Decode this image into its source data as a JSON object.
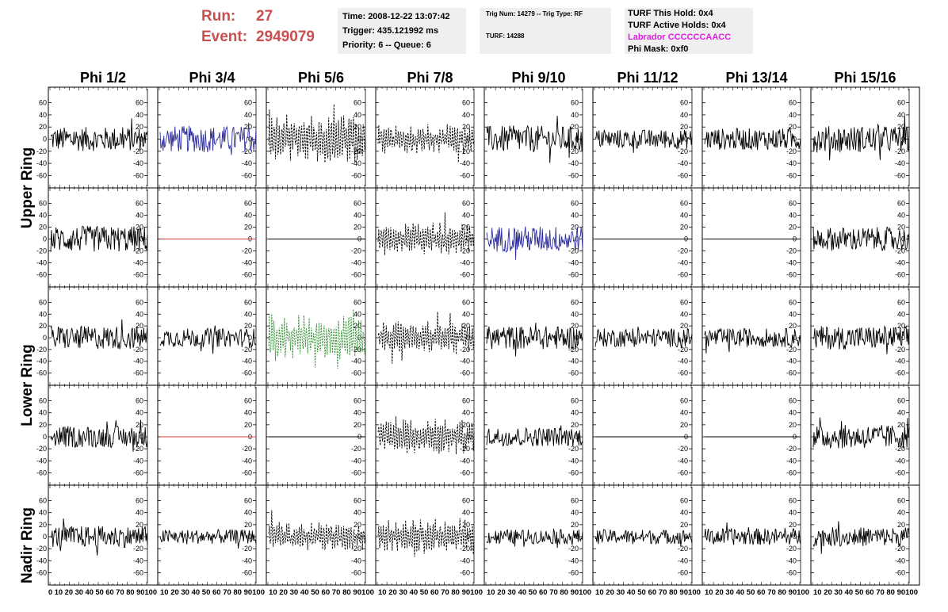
{
  "header": {
    "run_label": "Run:",
    "run_value": "27",
    "event_label": "Event:",
    "event_value": "2949079"
  },
  "info_time": {
    "time": "Time: 2008-12-22 13:07:42",
    "trigger": "Trigger: 435.121992 ms",
    "priority": "Priority: 6 -- Queue: 6"
  },
  "info_trig": {
    "trig": "Trig Num: 14279 -- Trig Type: RF",
    "turf": "TURF: 14288"
  },
  "info_turf": {
    "this_hold": "TURF This Hold: 0x4",
    "active_holds": "TURF Active Holds: 0x4",
    "labrador": "Labrador CCCCCCAACC",
    "phi_mask": "Phi Mask: 0xf0"
  },
  "colors": {
    "run_text": "#c94f4f",
    "labrador_text": "#e020e0",
    "blue_trace": "#2f2f99",
    "green_trace": "#2e8b2e",
    "red_flat": "#d04040",
    "trace": "#000000"
  },
  "columns": [
    "Phi 1/2",
    "Phi 3/4",
    "Phi 5/6",
    "Phi 7/8",
    "Phi 9/10",
    "Phi 11/12",
    "Phi 13/14",
    "Phi 15/16"
  ],
  "row_labels": [
    "Upper Ring",
    "Lower Ring",
    "Nadir Ring"
  ],
  "panel_rows": 5,
  "y_ticks": [
    "60",
    "40",
    "20",
    "0",
    "-20",
    "-40",
    "-60"
  ],
  "x_axis_labels": [
    "0 10 20 30 40 50 60 70 80 90100",
    "10 20 30 40 50 60 70 80 90100",
    "10 20 30 40 50 60 70 80 90100",
    "10 20 30 40 50 60 70 80 90100",
    "10 20 30 40 50 60 70 80 90100",
    "10 20 30 40 50 60 70 80 90100",
    "10 20 30 40 50 60 70 80 90100",
    "10 20 30 40 50 60 70 80 90100"
  ],
  "chart_data": {
    "type": "line",
    "x_range": [
      0,
      100
    ],
    "y_range": [
      -70,
      70
    ],
    "y_ticks": [
      60,
      40,
      20,
      0,
      -20,
      -40,
      -60
    ],
    "panels": [
      [
        "noise",
        "blue",
        "dashed",
        "dashed",
        "noise",
        "noise",
        "noise",
        "noise"
      ],
      [
        "noise",
        "flat-red",
        "flat",
        "dashed",
        "blue",
        "flat",
        "flat",
        "noise"
      ],
      [
        "noise",
        "noise",
        "green",
        "dashed",
        "noise",
        "noise",
        "noise",
        "noise"
      ],
      [
        "noise",
        "flat-red",
        "flat",
        "dashed",
        "noise",
        "flat",
        "flat",
        "noise"
      ],
      [
        "noise",
        "noise",
        "dashed",
        "dashed",
        "noise",
        "noise",
        "noise",
        "noise"
      ]
    ],
    "panel_amplitudes": [
      [
        20,
        22,
        30,
        18,
        22,
        16,
        18,
        22
      ],
      [
        22,
        0,
        0,
        20,
        22,
        0,
        0,
        20
      ],
      [
        20,
        16,
        30,
        22,
        20,
        16,
        16,
        20
      ],
      [
        18,
        0,
        0,
        22,
        16,
        0,
        0,
        20
      ],
      [
        18,
        12,
        18,
        22,
        12,
        12,
        14,
        16
      ]
    ]
  }
}
